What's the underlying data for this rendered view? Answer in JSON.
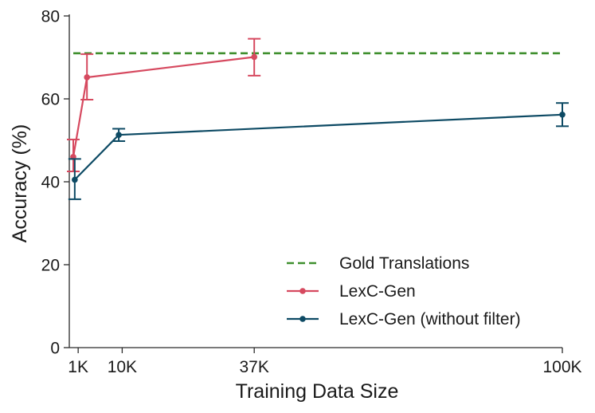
{
  "chart_data": {
    "type": "line",
    "title": "",
    "xlabel": "Training Data Size",
    "ylabel": "Accuracy (%)",
    "xlim": [
      0,
      100
    ],
    "ylim": [
      0,
      80
    ],
    "x_ticks": [
      {
        "value": 1,
        "label": "1K"
      },
      {
        "value": 10,
        "label": "10K"
      },
      {
        "value": 37,
        "label": "37K"
      },
      {
        "value": 100,
        "label": "100K"
      }
    ],
    "y_ticks": [
      0,
      20,
      40,
      60,
      80
    ],
    "series": [
      {
        "name": "Gold Translations",
        "style": "dashed",
        "color": "#3f8f2e",
        "values": [
          {
            "x": 0,
            "y": 71
          },
          {
            "x": 100,
            "y": 71
          }
        ]
      },
      {
        "name": "LexC-Gen",
        "style": "solid-marker",
        "color": "#d6495f",
        "points": [
          {
            "x": 0,
            "y": 46,
            "err_low": 42.5,
            "err_high": 50.2
          },
          {
            "x": 2.8,
            "y": 65.2,
            "err_low": 59.8,
            "err_high": 70.8
          },
          {
            "x": 37,
            "y": 70.1,
            "err_low": 65.6,
            "err_high": 74.5
          }
        ]
      },
      {
        "name": "LexC-Gen (without filter)",
        "style": "solid-marker",
        "color": "#0d4a64",
        "points": [
          {
            "x": 0.3,
            "y": 40.5,
            "err_low": 35.8,
            "err_high": 45.5
          },
          {
            "x": 9.3,
            "y": 51.3,
            "err_low": 49.8,
            "err_high": 52.8
          },
          {
            "x": 100,
            "y": 56.2,
            "err_low": 53.4,
            "err_high": 59
          }
        ]
      }
    ],
    "legend": {
      "position": "bottom-right",
      "entries": [
        "Gold Translations",
        "LexC-Gen",
        "LexC-Gen (without filter)"
      ]
    }
  }
}
